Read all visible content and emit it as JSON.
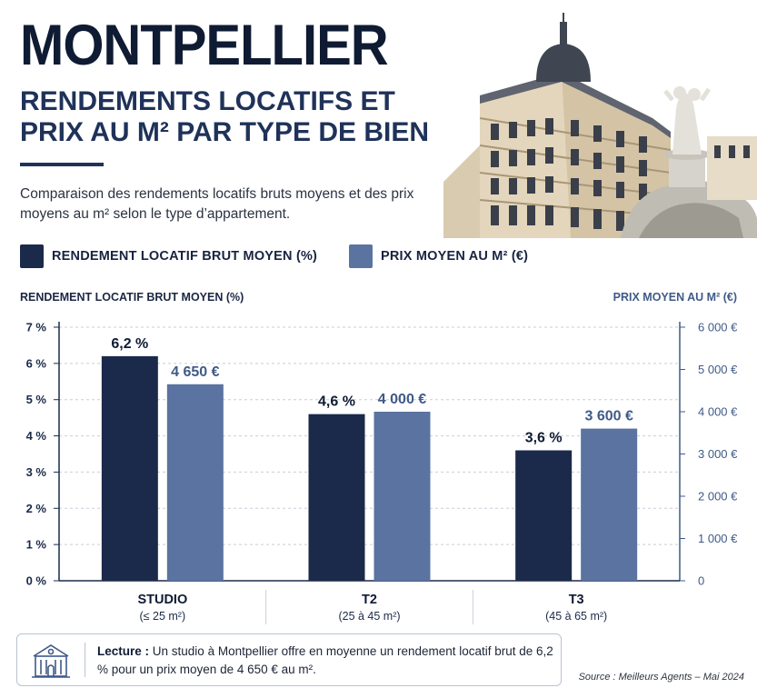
{
  "header": {
    "title": "MONTPELLIER",
    "subtitle": "RENDEMENTS LOCATIFS ET PRIX AU M² PAR TYPE DE BIEN",
    "description": "Comparaison des rendements locatifs bruts moyens et des prix moyens au m² selon le type d’appartement."
  },
  "photo": {
    "icon": "building-fountain-photo"
  },
  "legend": [
    {
      "label": "RENDEMENT LOCATIF BRUT MOYEN (%)",
      "color": "#1b2a4a"
    },
    {
      "label": "PRIX MOYEN AU M² (€)",
      "color": "#5b73a0"
    }
  ],
  "chart_data": {
    "type": "bar",
    "categories": [
      "STUDIO",
      "T2",
      "T3"
    ],
    "category_sublabels": [
      "(≤ 25 m²)",
      "(25 à 45 m²)",
      "(45 à 65 m²)"
    ],
    "series": [
      {
        "name": "RENDEMENT LOCATIF BRUT MOYEN (%)",
        "values": [
          6.2,
          4.6,
          3.6
        ],
        "labels": [
          "6,2 %",
          "4,6 %",
          "3,6 %"
        ],
        "color": "#1b2a4a",
        "axis": "left"
      },
      {
        "name": "PRIX MOYEN AU M² (€)",
        "values": [
          4650,
          4000,
          3600
        ],
        "labels": [
          "4 650 €",
          "4 000 €",
          "3 600 €"
        ],
        "color": "#5b73a0",
        "axis": "right"
      }
    ],
    "ylabel": "RENDEMENT LOCATIF BRUT MOYEN (%)",
    "y2label": "PRIX MOYEN AU M² (€)",
    "ylim": [
      0,
      7
    ],
    "y2lim": [
      0,
      6000
    ],
    "yticks": [
      "0 %",
      "1 %",
      "2 %",
      "3 %",
      "4 %",
      "5 %",
      "6 %",
      "7 %"
    ],
    "y2ticks": [
      "0",
      "1 000 €",
      "2 000 €",
      "3 000 €",
      "4 000 €",
      "5 000 €",
      "6 000 €"
    ],
    "grid": true,
    "legend_position": "top"
  },
  "note": {
    "icon": "building-icon",
    "lead": "Lecture :",
    "text": "Un studio à Montpellier offre en moyenne un rendement locatif brut de 6,2 % pour un prix moyen de 4 650 € au m²."
  },
  "source": "Source : Meilleurs Agents – Mai 2024"
}
